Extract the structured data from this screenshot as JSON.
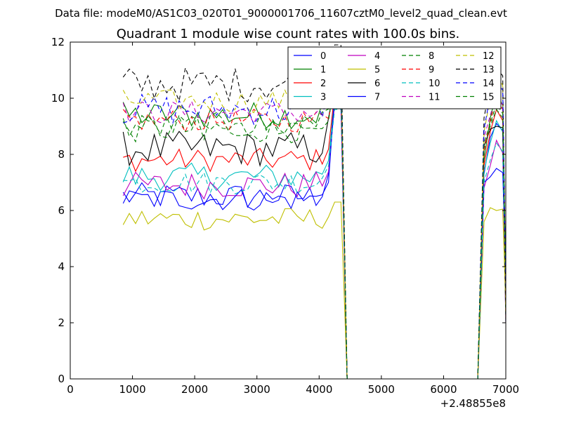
{
  "figure": {
    "suptitle": "Data file: modeM0/AS1C03_020T01_9000001706_11607cztM0_level2_quad_clean.evt"
  },
  "chart_data": {
    "type": "line",
    "title": "Quadrant 1 module wise count rates with 100.0s bins.",
    "xlabel": "",
    "ylabel": "",
    "x_offset_label": "+2.48855e8",
    "xlim": [
      0,
      7000
    ],
    "ylim": [
      0,
      12
    ],
    "xticks": [
      0,
      1000,
      2000,
      3000,
      4000,
      5000,
      6000,
      7000
    ],
    "yticks": [
      0,
      2,
      4,
      6,
      8,
      10,
      12
    ],
    "xtick_labels": [
      "0",
      "1000",
      "2000",
      "3000",
      "4000",
      "5000",
      "6000",
      "7000"
    ],
    "ytick_labels": [
      "0",
      "2",
      "4",
      "6",
      "8",
      "10",
      "12"
    ],
    "grid": false,
    "legend_position": "top-right",
    "legend_columns": 4,
    "x_segments": [
      {
        "start": 850,
        "step": 100,
        "count": 36
      },
      {
        "x": [
          4450,
          4550,
          6550,
          6650,
          6750,
          6850,
          6950,
          7000
        ]
      }
    ],
    "series": [
      {
        "name": "0",
        "color": "#0000ff",
        "dash": false,
        "base": 6.5,
        "amp": 0.35,
        "peak": 10.4,
        "late": [
          7.3,
          8.6,
          9.1
        ]
      },
      {
        "name": "1",
        "color": "#008000",
        "dash": false,
        "base": 9.4,
        "amp": 0.35,
        "peak": 11.0,
        "late": [
          7.8,
          9.3,
          10.2
        ]
      },
      {
        "name": "2",
        "color": "#ff0000",
        "dash": false,
        "base": 7.8,
        "amp": 0.3,
        "peak": 10.2,
        "late": [
          7.6,
          8.8,
          9.6
        ]
      },
      {
        "name": "3",
        "color": "#00bfbf",
        "dash": false,
        "base": 7.2,
        "amp": 0.35,
        "peak": 10.0,
        "late": [
          7.4,
          8.4,
          9.2
        ]
      },
      {
        "name": "4",
        "color": "#bf00bf",
        "dash": false,
        "base": 6.9,
        "amp": 0.35,
        "peak": 9.8,
        "late": [
          6.8,
          7.6,
          8.5
        ]
      },
      {
        "name": "5",
        "color": "#bfbf00",
        "dash": false,
        "base": 5.7,
        "amp": 0.3,
        "peak": 6.3,
        "late": [
          5.6,
          6.1,
          6.0
        ]
      },
      {
        "name": "6",
        "color": "#000000",
        "dash": false,
        "base": 8.2,
        "amp": 0.45,
        "peak": 10.5,
        "late": [
          8.3,
          8.9,
          9.0
        ]
      },
      {
        "name": "7",
        "color": "#0000ff",
        "dash": false,
        "base": 6.4,
        "amp": 0.3,
        "peak": 10.1,
        "late": [
          7.0,
          7.2,
          7.5
        ]
      },
      {
        "name": "8",
        "color": "#008000",
        "dash": true,
        "base": 8.9,
        "amp": 0.35,
        "peak": 10.6,
        "late": [
          8.2,
          9.0,
          9.6
        ]
      },
      {
        "name": "9",
        "color": "#ff0000",
        "dash": true,
        "base": 9.2,
        "amp": 0.3,
        "peak": 10.3,
        "late": [
          8.1,
          9.2,
          10.0
        ]
      },
      {
        "name": "10",
        "color": "#00bfbf",
        "dash": true,
        "base": 7.0,
        "amp": 0.3,
        "peak": 9.6,
        "late": [
          7.0,
          7.8,
          8.4
        ]
      },
      {
        "name": "11",
        "color": "#bf00bf",
        "dash": true,
        "base": 9.5,
        "amp": 0.3,
        "peak": 10.0,
        "late": [
          8.6,
          9.4,
          10.1
        ]
      },
      {
        "name": "12",
        "color": "#bfbf00",
        "dash": true,
        "base": 9.9,
        "amp": 0.3,
        "peak": 11.2,
        "late": [
          8.8,
          10.0,
          10.9
        ]
      },
      {
        "name": "13",
        "color": "#000000",
        "dash": true,
        "base": 10.5,
        "amp": 0.45,
        "peak": 11.9,
        "late": [
          9.3,
          10.5,
          11.1
        ]
      },
      {
        "name": "14",
        "color": "#0000ff",
        "dash": true,
        "base": 9.6,
        "amp": 0.4,
        "peak": 11.1,
        "late": [
          8.9,
          10.1,
          10.5
        ]
      },
      {
        "name": "15",
        "color": "#008000",
        "dash": true,
        "base": 9.0,
        "amp": 0.35,
        "peak": 10.7,
        "late": [
          8.4,
          9.1,
          9.8
        ]
      }
    ]
  }
}
